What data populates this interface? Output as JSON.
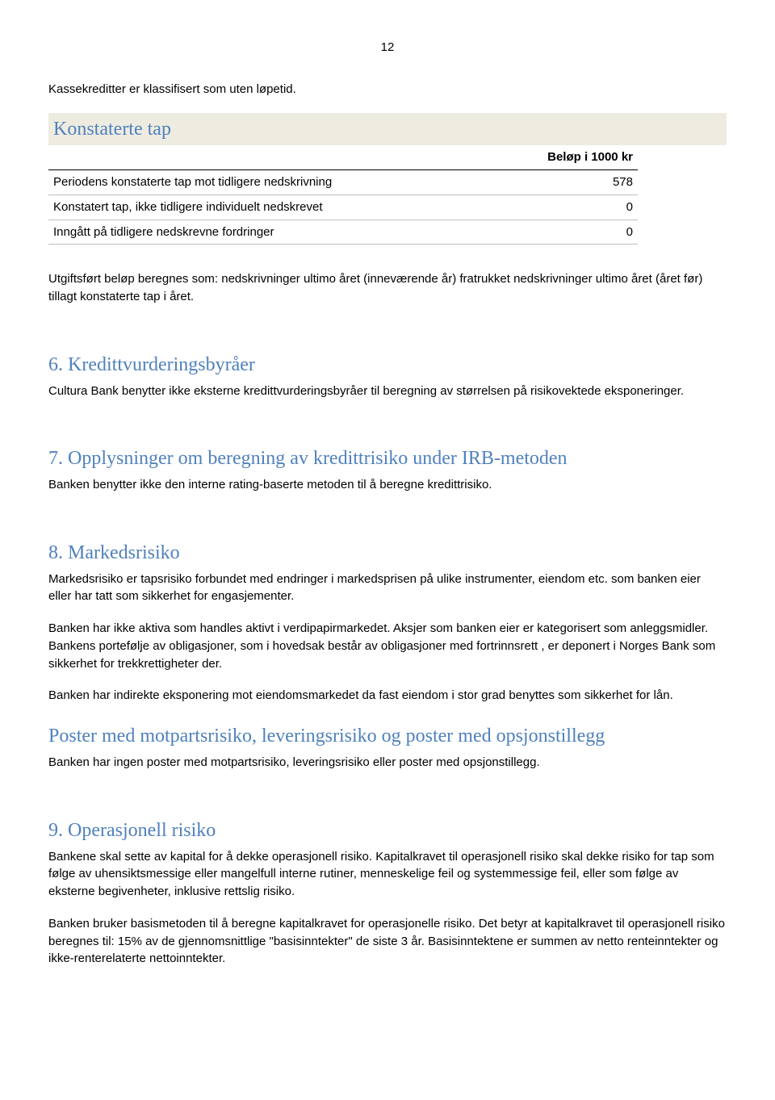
{
  "page_number": "12",
  "intro": "Kassekreditter er klassifisert som uten løpetid.",
  "konstaterte_tap": {
    "heading": "Konstaterte tap",
    "columns": [
      "",
      "Beløp i 1000 kr"
    ],
    "rows": [
      [
        "Periodens konstaterte tap mot tidligere nedskrivning",
        "578"
      ],
      [
        "Konstatert tap, ikke tidligere individuelt nedskrevet",
        "0"
      ],
      [
        "Inngått på tidligere nedskrevne fordringer",
        "0"
      ]
    ]
  },
  "utgiftsfort": "Utgiftsført beløp beregnes som: nedskrivninger ultimo året (inneværende år) fratrukket nedskrivninger ultimo året (året før) tillagt konstaterte tap i året.",
  "sec6": {
    "heading": "6. Kredittvurderingsbyråer",
    "text": "Cultura Bank benytter ikke eksterne kredittvurderingsbyråer til beregning av størrelsen på risikovektede eksponeringer."
  },
  "sec7": {
    "heading": "7. Opplysninger om beregning av kredittrisiko under IRB-metoden",
    "text": "Banken benytter ikke den interne rating-baserte metoden til å beregne kredittrisiko."
  },
  "sec8": {
    "heading": "8. Markedsrisiko",
    "p1": "Markedsrisiko er tapsrisiko forbundet med endringer i markedsprisen på ulike instrumenter, eiendom etc. som banken eier eller har tatt som sikkerhet for engasjementer.",
    "p2": "Banken har ikke aktiva som handles aktivt i verdipapirmarkedet. Aksjer som banken eier er kategorisert som anleggsmidler. Bankens portefølje av obligasjoner, som i hovedsak består av obligasjoner med fortrinnsrett , er deponert i Norges Bank som sikkerhet for trekkrettigheter der.",
    "p3": "Banken har indirekte eksponering mot eiendomsmarkedet da fast eiendom i stor grad benyttes som sikkerhet for lån."
  },
  "poster": {
    "heading": "Poster med motpartsrisiko, leveringsrisiko og poster med opsjonstillegg",
    "text": "Banken har ingen poster med motpartsrisiko, leveringsrisiko eller poster med opsjonstillegg."
  },
  "sec9": {
    "heading": "9. Operasjonell risiko",
    "p1": "Bankene skal sette av kapital for å dekke operasjonell risiko. Kapitalkravet til operasjonell risiko skal dekke risiko for tap som følge av uhensiktsmessige eller mangelfull interne rutiner, menneskelige feil og systemmessige feil, eller som følge av eksterne begivenheter, inklusive rettslig risiko.",
    "p2": "Banken bruker basismetoden til å beregne kapitalkravet for operasjonelle risiko. Det betyr at kapitalkravet til operasjonell risiko beregnes til: 15% av de gjennomsnittlige \"basisinntekter\" de siste 3 år. Basisinntektene er summen av netto renteinntekter og ikke-renterelaterte nettoinntekter."
  }
}
